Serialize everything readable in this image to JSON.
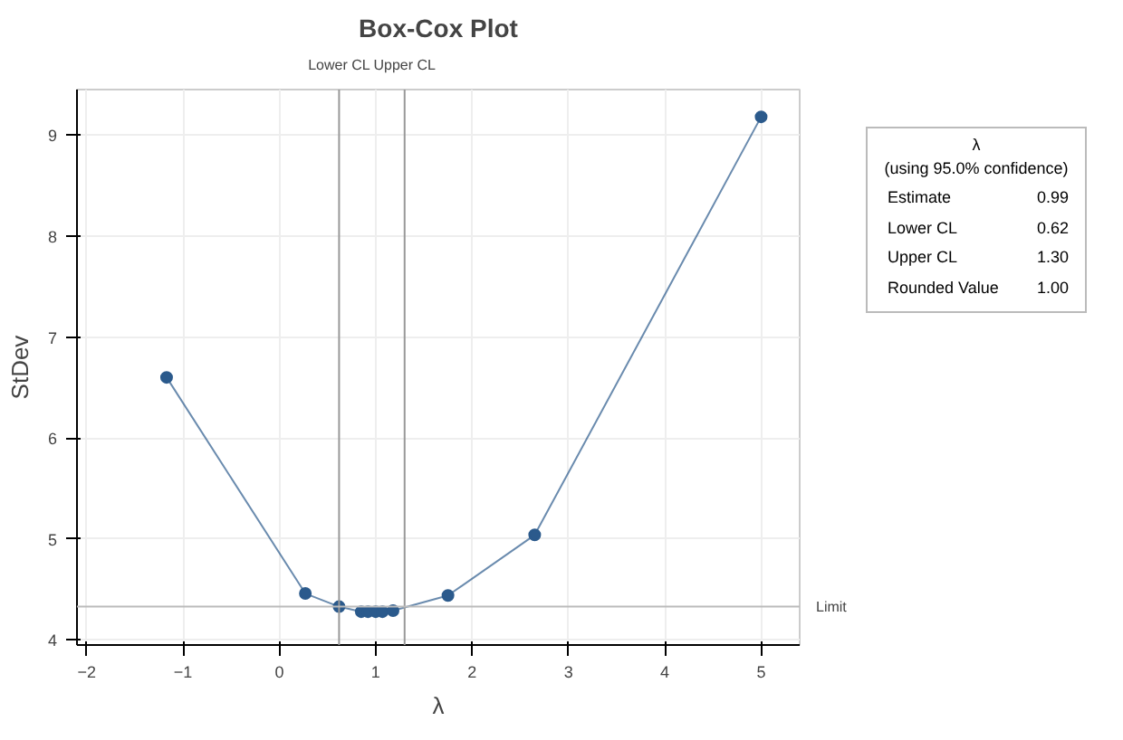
{
  "chart_data": {
    "type": "line",
    "title": "Box-Cox Plot",
    "xlabel": "λ",
    "ylabel": "StDev",
    "x": [
      -1.17,
      0.27,
      0.62,
      0.85,
      0.92,
      1.0,
      1.07,
      1.18,
      1.75,
      2.65,
      5.0
    ],
    "series": [
      {
        "color": "#2b5a8c",
        "values": [
          6.6,
          4.46,
          4.33,
          4.28,
          4.28,
          4.28,
          4.28,
          4.29,
          4.44,
          5.04,
          9.18
        ]
      }
    ],
    "xlim": [
      -2.1,
      5.4
    ],
    "ylim": [
      3.95,
      9.45
    ],
    "xticks": [
      -2,
      -1,
      0,
      1,
      2,
      3,
      4,
      5
    ],
    "yticks": [
      4,
      5,
      6,
      7,
      8,
      9
    ],
    "ref_lines": [
      {
        "axis": "x",
        "value": 0.62,
        "label": "Lower CL",
        "color": "#999999"
      },
      {
        "axis": "x",
        "value": 1.3,
        "label": "Upper CL",
        "color": "#999999"
      },
      {
        "axis": "y",
        "value": 4.33,
        "label": "Limit",
        "color": "#bbbbbb"
      }
    ],
    "annotations": [
      "λ",
      "(using 95.0% confidence)",
      "Estimate",
      "0.99",
      "Lower CL",
      "0.62",
      "Upper CL",
      "1.30",
      "Rounded Value",
      "1.00"
    ],
    "grid": true,
    "marker": "circle",
    "line_style": "solid"
  }
}
